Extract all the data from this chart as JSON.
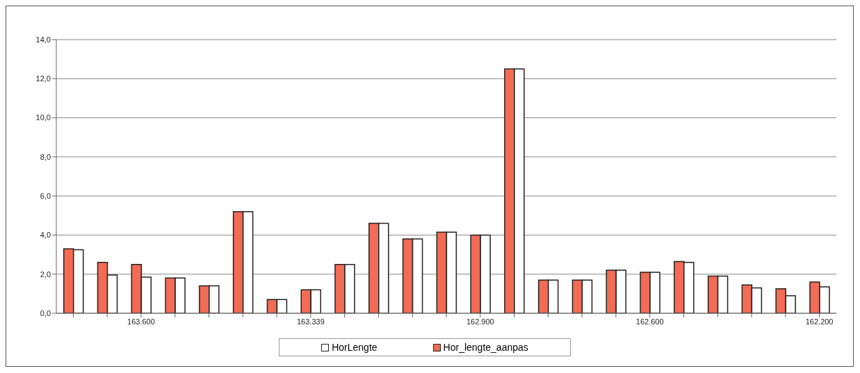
{
  "chart_data": {
    "type": "bar",
    "categories": [
      null,
      null,
      "163.600",
      null,
      null,
      null,
      null,
      "163.339",
      null,
      null,
      null,
      null,
      "162.900",
      null,
      null,
      null,
      null,
      "162.600",
      null,
      null,
      null,
      null,
      "162.200"
    ],
    "series": [
      {
        "name": "Hor_lengte_aanpas",
        "color": "#f26b55",
        "values": [
          3.3,
          2.6,
          2.5,
          1.8,
          1.4,
          5.2,
          0.7,
          1.2,
          2.5,
          4.6,
          3.8,
          4.15,
          4.0,
          12.5,
          1.7,
          1.7,
          2.2,
          2.1,
          2.65,
          1.9,
          1.45,
          1.25,
          1.6
        ]
      },
      {
        "name": "HorLengte",
        "color": "#ffffff",
        "values": [
          3.25,
          1.95,
          1.85,
          1.8,
          1.4,
          5.2,
          0.7,
          1.2,
          2.5,
          4.6,
          3.8,
          4.15,
          4.0,
          12.5,
          1.7,
          1.7,
          2.2,
          2.1,
          2.6,
          1.9,
          1.3,
          0.9,
          1.35
        ]
      }
    ],
    "ylim": [
      0,
      14
    ],
    "yticks": [
      {
        "value": 0,
        "label": "0,0"
      },
      {
        "value": 2,
        "label": "2,0"
      },
      {
        "value": 4,
        "label": "4,0"
      },
      {
        "value": 6,
        "label": "6,0"
      },
      {
        "value": 8,
        "label": "8,0"
      },
      {
        "value": 10,
        "label": "10,0"
      },
      {
        "value": 12,
        "label": "12,0"
      },
      {
        "value": 14,
        "label": "14,0"
      }
    ],
    "grid": "y",
    "legend": "bottom"
  }
}
